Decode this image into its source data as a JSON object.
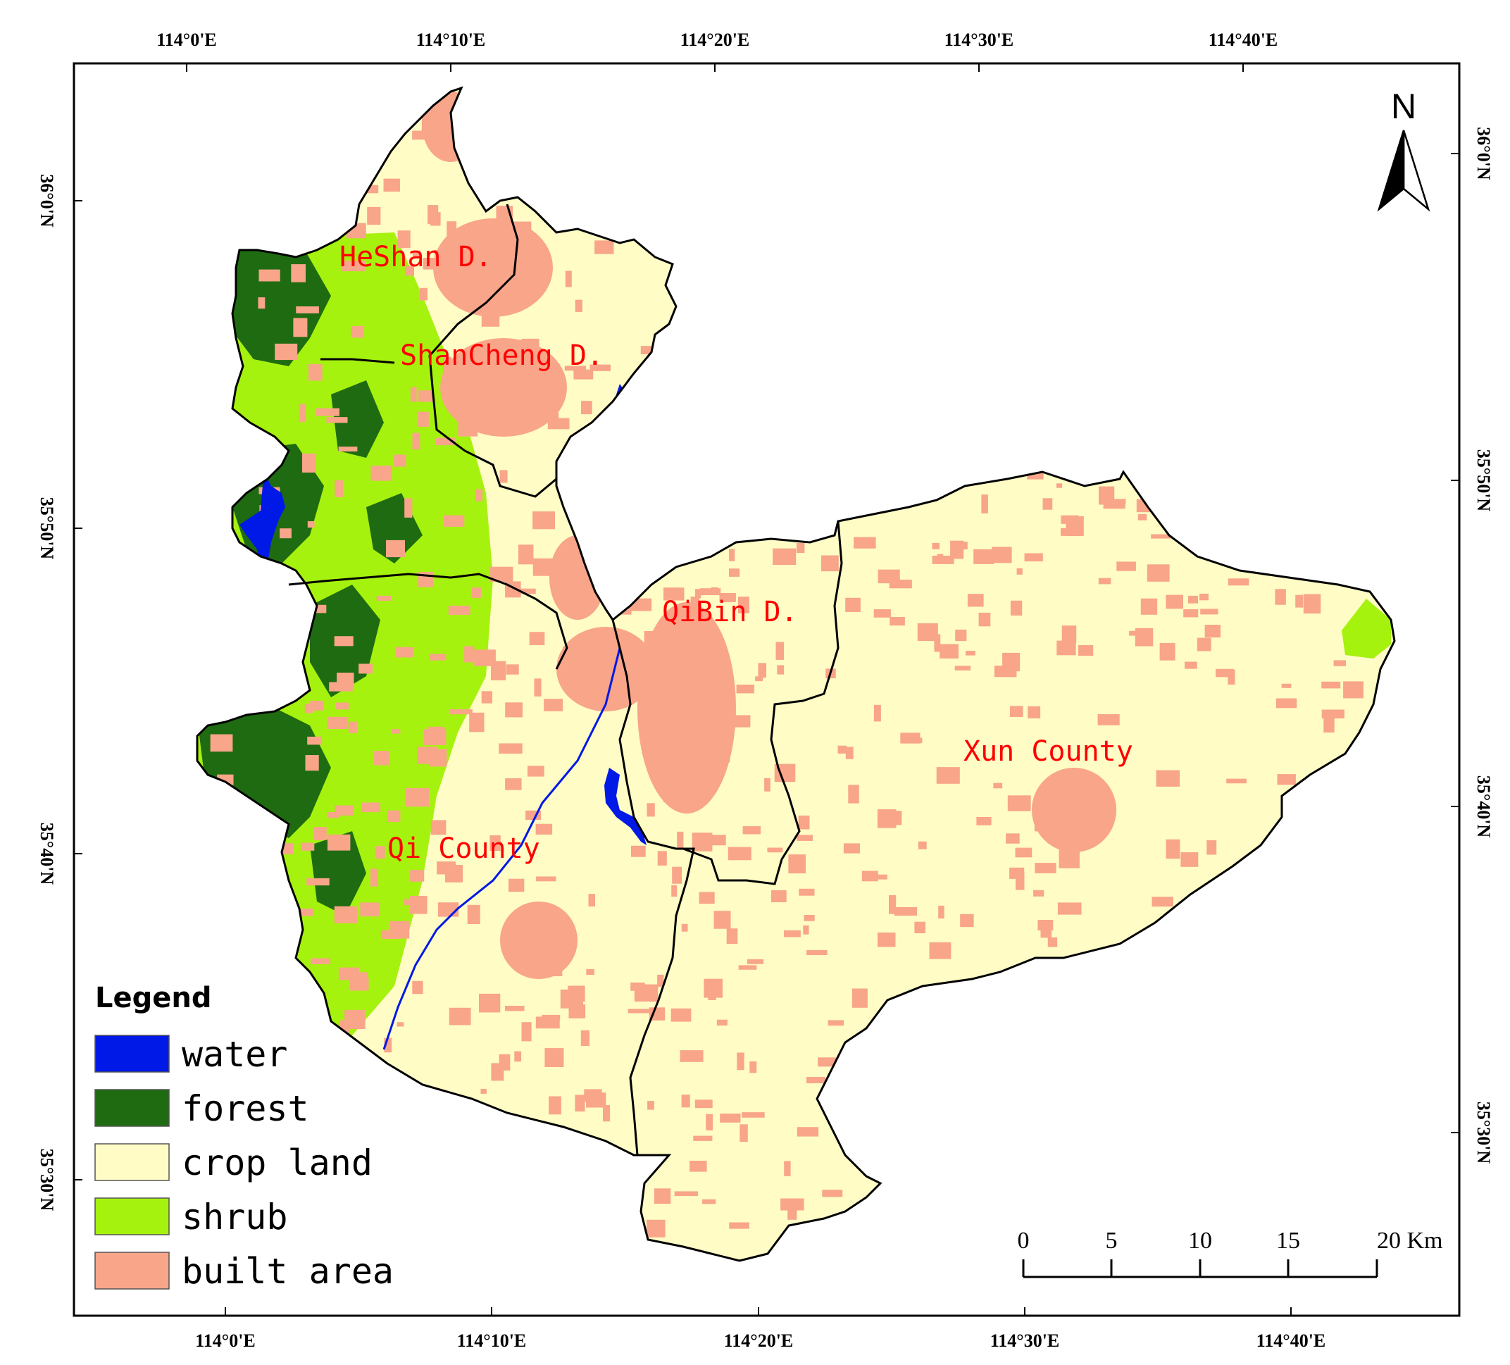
{
  "colors": {
    "water": "#0019e6",
    "forest": "#1f6b12",
    "crop_land": "#fffcc6",
    "shrub": "#a6f20f",
    "built_area": "#f8a58a",
    "boundary": "#000000",
    "label": "#ff0000"
  },
  "top_ticks": [
    "114°0'E",
    "114°10'E",
    "114°20'E",
    "114°30'E",
    "114°40'E"
  ],
  "bottom_ticks": [
    "114°0'E",
    "114°10'E",
    "114°20'E",
    "114°30'E",
    "114°40'E"
  ],
  "left_ticks": [
    "36°0'N",
    "35°50'N",
    "35°40'N",
    "35°30'N"
  ],
  "right_ticks": [
    "36°0'N",
    "35°50'N",
    "35°40'N",
    "35°30'N"
  ],
  "regions": {
    "heshan": "HeShan D.",
    "shancheng": "ShanCheng D.",
    "qibin": "QiBin D.",
    "xun": "Xun County",
    "qi": "Qi County"
  },
  "north_arrow": {
    "letter": "N",
    "icon": "north-arrow-icon"
  },
  "legend": {
    "title": "Legend",
    "items": [
      "water",
      "forest",
      "crop land",
      "shrub",
      "built area"
    ]
  },
  "scale_bar": {
    "labels": [
      "0",
      "5",
      "10",
      "15",
      "20 Km"
    ]
  }
}
